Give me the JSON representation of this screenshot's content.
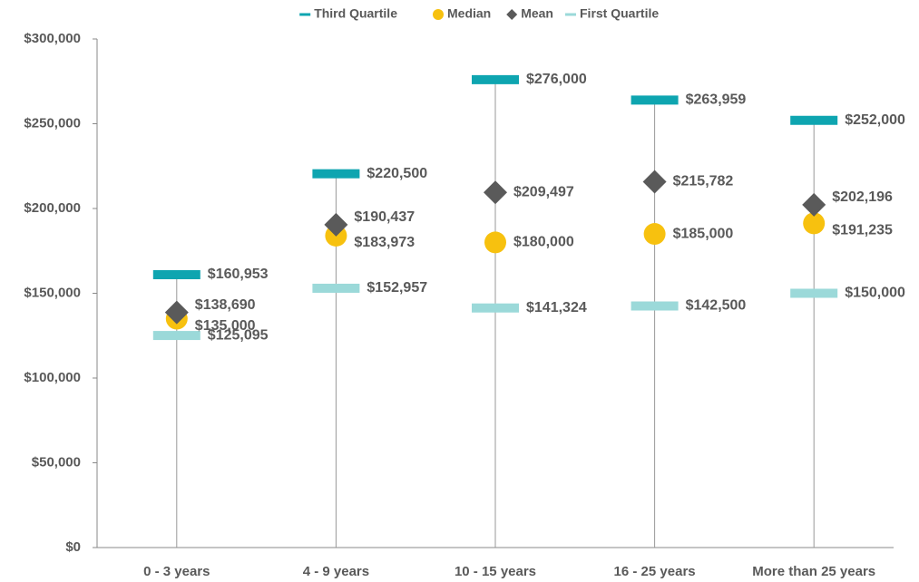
{
  "chart_data": {
    "type": "dot",
    "categories": [
      "0 - 3 years",
      "4 - 9 years",
      "10 - 15 years",
      "16 - 25 years",
      "More than 25 years"
    ],
    "series": [
      {
        "name": "Third Quartile",
        "color": "#0ea5b0",
        "marker": "dash",
        "values": [
          160953,
          220500,
          276000,
          263959,
          252000
        ],
        "value_labels": [
          "$160,953",
          "$220,500",
          "$276,000",
          "$263,959",
          "$252,000"
        ]
      },
      {
        "name": "Median",
        "color": "#f7c10f",
        "marker": "circle",
        "values": [
          135000,
          183973,
          180000,
          185000,
          191235
        ],
        "value_labels": [
          "$135,000",
          "$183,973",
          "$180,000",
          "$185,000",
          "$191,235"
        ]
      },
      {
        "name": "Mean",
        "color": "#5a5a5a",
        "marker": "diamond",
        "values": [
          138690,
          190437,
          209497,
          215782,
          202196
        ],
        "value_labels": [
          "$138,690",
          "$190,437",
          "$209,497",
          "$215,782",
          "$202,196"
        ]
      },
      {
        "name": "First Quartile",
        "color": "#9bd9d9",
        "marker": "dash",
        "values": [
          125095,
          152957,
          141324,
          142500,
          150000
        ],
        "value_labels": [
          "$125,095",
          "$152,957",
          "$141,324",
          "$142,500",
          "$150,000"
        ]
      }
    ],
    "ylim": [
      0,
      300000
    ],
    "yticks": [
      {
        "value": 0,
        "label": "$0"
      },
      {
        "value": 50000,
        "label": "$50,000"
      },
      {
        "value": 100000,
        "label": "$100,000"
      },
      {
        "value": 150000,
        "label": "$150,000"
      },
      {
        "value": 200000,
        "label": "$200,000"
      },
      {
        "value": 250000,
        "label": "$250,000"
      },
      {
        "value": 300000,
        "label": "$300,000"
      }
    ],
    "legend": "top"
  }
}
